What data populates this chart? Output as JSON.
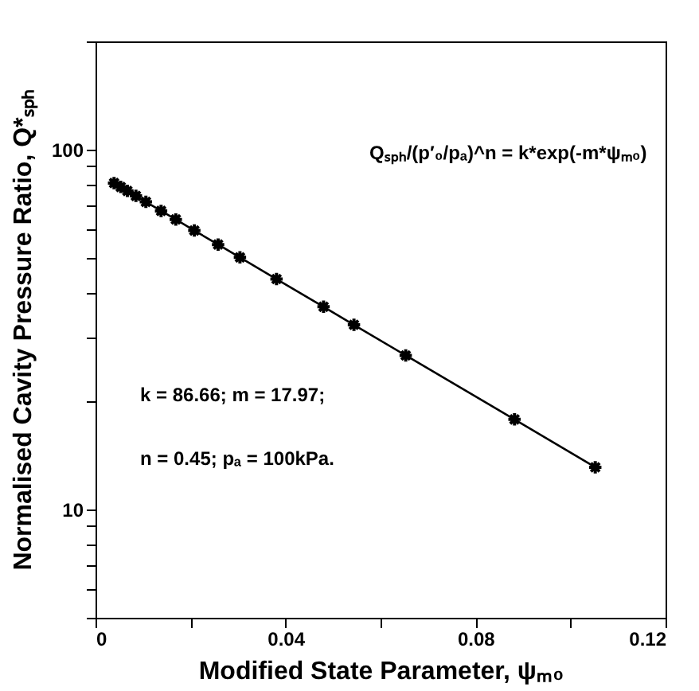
{
  "chart_data": {
    "type": "line",
    "xlabel": "Modified State Parameter, ψₘ₀",
    "ylabel": "Normalised Cavity Pressure Ratio, Q*ₛₚₕ",
    "annotations": [
      "Qₛₚₕ/(p′₀/pₐ)^n = k*exp(-m*ψₘ₀)",
      "k = 86.66;   m = 17.97;",
      "n = 0.45;   pₐ = 100kPa."
    ],
    "x": [
      0.0039,
      0.0053,
      0.0067,
      0.0085,
      0.0106,
      0.0138,
      0.0169,
      0.0208,
      0.0258,
      0.0304,
      0.0381,
      0.048,
      0.0544,
      0.0653,
      0.0882,
      0.1052
    ],
    "series": [
      {
        "color": "#000000",
        "values": [
          80.8,
          78.8,
          76.8,
          74.4,
          71.6,
          67.6,
          64.0,
          59.6,
          54.5,
          50.2,
          43.7,
          36.6,
          32.6,
          26.8,
          17.8,
          13.1
        ]
      }
    ],
    "marker": "cross",
    "line_style": "solid",
    "log": "y",
    "grid": false,
    "xlim": [
      0,
      0.12
    ],
    "xticks": [
      0,
      {
        "value": 0.02,
        "label": null
      },
      0.04,
      {
        "value": 0.06,
        "label": null
      },
      0.08,
      {
        "value": 0.1,
        "label": null
      },
      0.12
    ],
    "ylim": [
      5,
      200
    ],
    "yticks": [
      {
        "value": 5,
        "label": null
      },
      {
        "value": 6,
        "label": null
      },
      {
        "value": 7,
        "label": null
      },
      {
        "value": 8,
        "label": null
      },
      {
        "value": 9,
        "label": null
      },
      10,
      {
        "value": 20,
        "label": null
      },
      {
        "value": 30,
        "label": null
      },
      {
        "value": 40,
        "label": null
      },
      {
        "value": 50,
        "label": null
      },
      {
        "value": 60,
        "label": null
      },
      {
        "value": 70,
        "label": null
      },
      {
        "value": 80,
        "label": null
      },
      {
        "value": 90,
        "label": null
      },
      100,
      {
        "value": 200,
        "label": null
      }
    ]
  }
}
